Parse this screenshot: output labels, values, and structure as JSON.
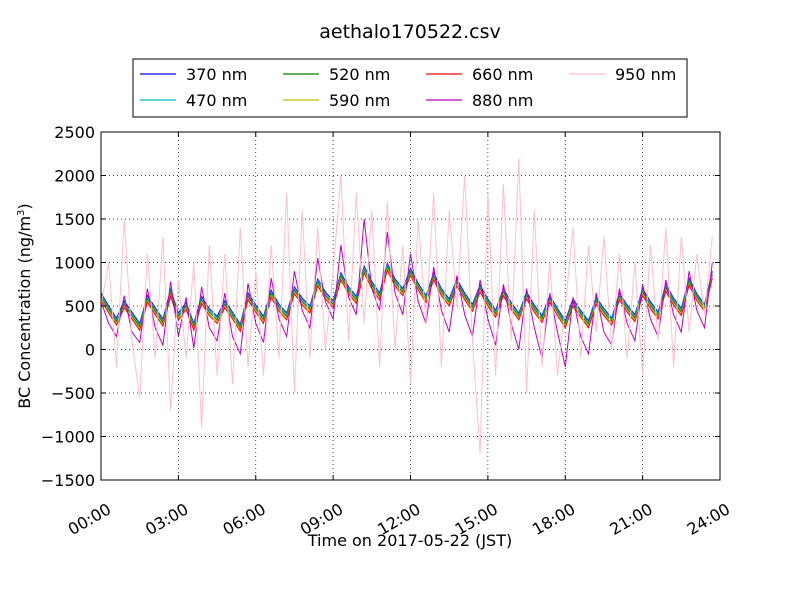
{
  "chart_data": {
    "type": "line",
    "title": "aethalo170522.csv",
    "xlabel": "Time on 2017-05-22 (JST)",
    "ylabel_main": "BC Concentration (ng/m",
    "ylabel_sup": "3",
    "ylabel_end": ")",
    "xlim_hours": [
      0,
      24
    ],
    "ylim": [
      -1500,
      2500
    ],
    "xticks": [
      {
        "h": 0,
        "label": "00:00"
      },
      {
        "h": 3,
        "label": "03:00"
      },
      {
        "h": 6,
        "label": "06:00"
      },
      {
        "h": 9,
        "label": "09:00"
      },
      {
        "h": 12,
        "label": "12:00"
      },
      {
        "h": 15,
        "label": "15:00"
      },
      {
        "h": 18,
        "label": "18:00"
      },
      {
        "h": 21,
        "label": "21:00"
      },
      {
        "h": 24,
        "label": "24:00"
      }
    ],
    "yticks": [
      -1500,
      -1000,
      -500,
      0,
      500,
      1000,
      1500,
      2000,
      2500
    ],
    "ytick_labels": [
      "−1500",
      "−1000",
      "−500",
      "0",
      "500",
      "1000",
      "1500",
      "2000",
      "2500"
    ],
    "grid": true,
    "legend_position": "top",
    "x_hours": [
      0.0,
      0.3,
      0.6,
      0.9,
      1.2,
      1.5,
      1.8,
      2.1,
      2.4,
      2.7,
      3.0,
      3.3,
      3.6,
      3.9,
      4.2,
      4.5,
      4.8,
      5.1,
      5.4,
      5.7,
      6.0,
      6.3,
      6.6,
      6.9,
      7.2,
      7.5,
      7.8,
      8.1,
      8.4,
      8.7,
      9.0,
      9.3,
      9.6,
      9.9,
      10.2,
      10.5,
      10.8,
      11.1,
      11.4,
      11.7,
      12.0,
      12.3,
      12.6,
      12.9,
      13.2,
      13.5,
      13.8,
      14.1,
      14.4,
      14.7,
      15.0,
      15.3,
      15.6,
      15.9,
      16.2,
      16.5,
      16.8,
      17.1,
      17.4,
      17.7,
      18.0,
      18.3,
      18.6,
      18.9,
      19.2,
      19.5,
      19.8,
      20.1,
      20.4,
      20.7,
      21.0,
      21.3,
      21.6,
      21.9,
      22.2,
      22.5,
      22.8,
      23.1,
      23.4,
      23.7
    ],
    "series": [
      {
        "name": "370 nm",
        "color": "#0000ff",
        "values": [
          650,
          500,
          360,
          560,
          430,
          300,
          620,
          480,
          350,
          690,
          420,
          540,
          300,
          610,
          470,
          380,
          560,
          430,
          290,
          650,
          510,
          380,
          680,
          520,
          420,
          720,
          590,
          500,
          810,
          660,
          560,
          880,
          720,
          610,
          960,
          780,
          650,
          990,
          810,
          700,
          930,
          760,
          620,
          880,
          700,
          580,
          810,
          650,
          520,
          740,
          580,
          450,
          700,
          540,
          420,
          660,
          510,
          390,
          620,
          470,
          330,
          580,
          450,
          330,
          600,
          470,
          360,
          650,
          510,
          400,
          700,
          550,
          430,
          750,
          590,
          470,
          820,
          640,
          520,
          900
        ]
      },
      {
        "name": "470 nm",
        "color": "#00bfbf",
        "values": [
          630,
          480,
          340,
          540,
          410,
          280,
          600,
          460,
          330,
          670,
          400,
          520,
          280,
          590,
          450,
          360,
          540,
          410,
          270,
          630,
          490,
          360,
          660,
          500,
          400,
          700,
          570,
          480,
          790,
          640,
          540,
          860,
          700,
          590,
          940,
          760,
          630,
          970,
          790,
          680,
          910,
          740,
          600,
          860,
          680,
          560,
          790,
          630,
          500,
          720,
          560,
          430,
          680,
          520,
          400,
          640,
          490,
          370,
          600,
          450,
          310,
          560,
          430,
          310,
          580,
          450,
          340,
          630,
          490,
          380,
          680,
          530,
          410,
          730,
          570,
          450,
          800,
          620,
          500,
          880
        ]
      },
      {
        "name": "520 nm",
        "color": "#008000",
        "values": [
          610,
          460,
          320,
          520,
          390,
          260,
          580,
          440,
          310,
          650,
          380,
          500,
          260,
          570,
          430,
          340,
          520,
          390,
          250,
          610,
          470,
          340,
          640,
          480,
          380,
          680,
          550,
          460,
          770,
          620,
          520,
          840,
          680,
          570,
          920,
          740,
          610,
          950,
          770,
          660,
          890,
          720,
          580,
          840,
          660,
          540,
          770,
          610,
          480,
          700,
          540,
          410,
          660,
          500,
          380,
          620,
          470,
          350,
          580,
          430,
          290,
          540,
          410,
          290,
          560,
          430,
          320,
          610,
          470,
          360,
          660,
          510,
          390,
          710,
          550,
          430,
          780,
          600,
          480,
          860
        ]
      },
      {
        "name": "590 nm",
        "color": "#bfbf00",
        "values": [
          590,
          440,
          300,
          500,
          370,
          240,
          560,
          420,
          290,
          630,
          360,
          480,
          240,
          550,
          410,
          320,
          500,
          370,
          230,
          590,
          450,
          320,
          620,
          460,
          360,
          660,
          530,
          440,
          750,
          600,
          500,
          820,
          660,
          550,
          900,
          720,
          590,
          930,
          750,
          640,
          870,
          700,
          560,
          820,
          640,
          520,
          750,
          590,
          460,
          680,
          520,
          390,
          640,
          480,
          360,
          600,
          450,
          330,
          560,
          410,
          270,
          520,
          390,
          270,
          540,
          410,
          300,
          590,
          450,
          340,
          640,
          490,
          370,
          690,
          530,
          410,
          760,
          580,
          460,
          840
        ]
      },
      {
        "name": "660 nm",
        "color": "#ff0000",
        "values": [
          570,
          420,
          280,
          480,
          350,
          220,
          540,
          400,
          270,
          610,
          340,
          460,
          220,
          530,
          390,
          300,
          480,
          350,
          210,
          570,
          430,
          300,
          600,
          440,
          340,
          640,
          510,
          420,
          730,
          580,
          480,
          800,
          640,
          530,
          880,
          700,
          570,
          910,
          730,
          620,
          850,
          680,
          540,
          800,
          620,
          500,
          730,
          570,
          440,
          660,
          500,
          370,
          620,
          460,
          340,
          580,
          430,
          310,
          540,
          390,
          250,
          500,
          370,
          250,
          520,
          390,
          280,
          570,
          430,
          320,
          620,
          470,
          350,
          670,
          510,
          390,
          740,
          560,
          440,
          820
        ]
      },
      {
        "name": "880 nm",
        "color": "#bf00bf",
        "values": [
          550,
          300,
          150,
          620,
          200,
          80,
          700,
          250,
          50,
          780,
          150,
          600,
          20,
          720,
          250,
          100,
          650,
          150,
          -50,
          760,
          300,
          80,
          820,
          350,
          150,
          900,
          450,
          250,
          1050,
          550,
          350,
          1200,
          600,
          400,
          1500,
          700,
          450,
          1350,
          650,
          400,
          1100,
          550,
          300,
          950,
          450,
          200,
          850,
          400,
          150,
          800,
          350,
          50,
          750,
          300,
          0,
          700,
          250,
          -100,
          650,
          200,
          -200,
          600,
          150,
          -50,
          650,
          200,
          50,
          700,
          300,
          100,
          750,
          350,
          150,
          800,
          400,
          200,
          900,
          450,
          250,
          1000
        ]
      },
      {
        "name": "950 nm",
        "color": "#ffc0cb",
        "values": [
          500,
          1000,
          -200,
          1500,
          100,
          -550,
          1100,
          -100,
          1300,
          -700,
          800,
          -100,
          1000,
          -900,
          1200,
          -300,
          1100,
          -400,
          1400,
          -200,
          900,
          -300,
          1200,
          -100,
          1800,
          -500,
          1600,
          -100,
          1400,
          0,
          900,
          2000,
          100,
          1800,
          300,
          1600,
          -200,
          1700,
          0,
          1200,
          -400,
          1500,
          300,
          1800,
          -200,
          1600,
          500,
          2000,
          100,
          -1200,
          1800,
          -300,
          1900,
          100,
          2200,
          -500,
          1600,
          -200,
          1000,
          -300,
          500,
          1400,
          -100,
          1200,
          200,
          1300,
          0,
          1100,
          -100,
          1000,
          -300,
          1200,
          100,
          1400,
          -200,
          1300,
          200,
          1100,
          400,
          1300
        ]
      }
    ]
  }
}
